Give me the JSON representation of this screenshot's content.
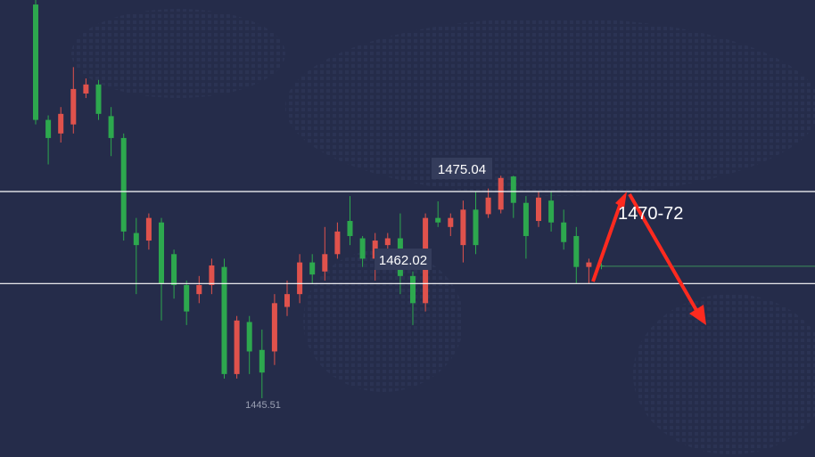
{
  "chart_data": {
    "type": "candlestick",
    "open": [
      1497.7,
      1482.4,
      1480.6,
      1481.8,
      1485.9,
      1487.1,
      1482.9,
      1480.0,
      1467.4,
      1466.4,
      1468.8,
      1464.6,
      1460.5,
      1459.3,
      1460.5,
      1462.9,
      1448.7,
      1455.6,
      1451.9,
      1451.7,
      1457.6,
      1459.3,
      1463.5,
      1462.3,
      1464.6,
      1469.0,
      1466.7,
      1464.0,
      1465.8,
      1466.7,
      1461.7,
      1458.1,
      1469.4,
      1468.2,
      1465.8,
      1470.5,
      1469.9,
      1470.5,
      1474.9,
      1471.4,
      1469.0,
      1471.7,
      1468.8,
      1467.0,
      1462.9,
      1463.1
    ],
    "high": [
      1498.3,
      1483.0,
      1484.1,
      1489.4,
      1487.9,
      1487.7,
      1484.1,
      1480.6,
      1469.4,
      1470.0,
      1469.4,
      1465.2,
      1461.1,
      1461.7,
      1464.0,
      1464.0,
      1456.4,
      1456.4,
      1454.6,
      1459.3,
      1461.1,
      1464.6,
      1464.6,
      1468.2,
      1468.8,
      1472.3,
      1467.0,
      1467.4,
      1467.4,
      1470.0,
      1462.3,
      1470.0,
      1471.6,
      1470.0,
      1471.7,
      1472.9,
      1473.3,
      1475.0,
      1475.0,
      1472.3,
      1472.9,
      1472.9,
      1470.5,
      1468.2,
      1464.0,
      1463.4
    ],
    "low": [
      1481.8,
      1476.5,
      1479.4,
      1480.6,
      1485.3,
      1482.4,
      1477.6,
      1466.4,
      1459.3,
      1465.2,
      1455.8,
      1458.7,
      1455.2,
      1458.1,
      1459.3,
      1448.1,
      1448.1,
      1448.7,
      1445.5,
      1449.9,
      1456.4,
      1458.1,
      1460.7,
      1461.1,
      1464.0,
      1465.8,
      1462.9,
      1461.1,
      1462.9,
      1459.3,
      1455.2,
      1457.0,
      1468.2,
      1467.0,
      1463.5,
      1464.6,
      1469.4,
      1470.0,
      1469.4,
      1464.0,
      1468.2,
      1467.6,
      1465.2,
      1460.7,
      1460.7,
      1462.6
    ],
    "close": [
      1482.4,
      1480.0,
      1483.2,
      1486.5,
      1487.1,
      1483.2,
      1480.0,
      1467.6,
      1465.8,
      1469.4,
      1460.7,
      1460.5,
      1457.0,
      1460.5,
      1463.1,
      1448.7,
      1455.8,
      1451.7,
      1448.9,
      1458.1,
      1459.3,
      1463.5,
      1461.9,
      1464.6,
      1467.6,
      1467.0,
      1464.0,
      1466.4,
      1466.7,
      1461.7,
      1458.1,
      1469.4,
      1468.8,
      1469.4,
      1470.5,
      1465.8,
      1472.1,
      1474.7,
      1471.4,
      1467.0,
      1472.1,
      1468.8,
      1466.2,
      1462.9,
      1463.5,
      1463.0
    ],
    "up_color": "#e0524c",
    "down_color": "#2da84e",
    "ylim": [
      1437.7,
      1498.3
    ],
    "levels": [
      1472.9,
      1460.7
    ],
    "price_labels": [
      "1475.04",
      "1462.02",
      "1445.51"
    ],
    "target_label": "1470-72"
  }
}
